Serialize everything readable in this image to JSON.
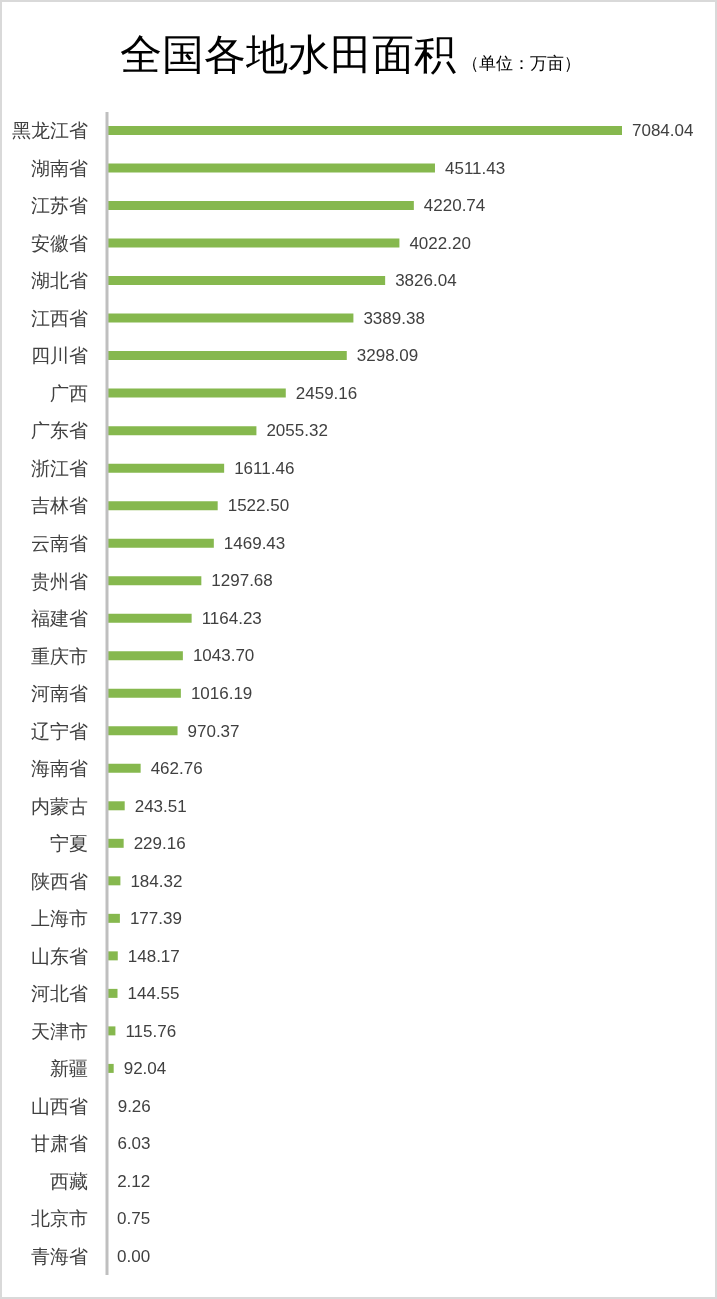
{
  "chart_data": {
    "type": "bar",
    "orientation": "horizontal",
    "title": "全国各地水田面积",
    "subtitle": "（单位：万亩）",
    "tick_labels": "y",
    "categories": [
      "黑龙江省",
      "湖南省",
      "江苏省",
      "安徽省",
      "湖北省",
      "江西省",
      "四川省",
      "广西",
      "广东省",
      "浙江省",
      "吉林省",
      "云南省",
      "贵州省",
      "福建省",
      "重庆市",
      "河南省",
      "辽宁省",
      "海南省",
      "内蒙古",
      "宁夏",
      "陕西省",
      "上海市",
      "山东省",
      "河北省",
      "天津市",
      "新疆",
      "山西省",
      "甘肃省",
      "西藏",
      "北京市",
      "青海省"
    ],
    "values": [
      7084.04,
      4511.43,
      4220.74,
      4022.2,
      3826.04,
      3389.38,
      3298.09,
      2459.16,
      2055.32,
      1611.46,
      1522.5,
      1469.43,
      1297.68,
      1164.23,
      1043.7,
      1016.19,
      970.37,
      462.76,
      243.51,
      229.16,
      184.32,
      177.39,
      148.17,
      144.55,
      115.76,
      92.04,
      9.26,
      6.03,
      2.12,
      0.75,
      0.0
    ],
    "value_labels": [
      "7084.04",
      "4511.43",
      "4220.74",
      "4022.20",
      "3826.04",
      "3389.38",
      "3298.09",
      "2459.16",
      "2055.32",
      "1611.46",
      "1522.50",
      "1469.43",
      "1297.68",
      "1164.23",
      "1043.70",
      "1016.19",
      "970.37",
      "462.76",
      "243.51",
      "229.16",
      "184.32",
      "177.39",
      "148.17",
      "144.55",
      "115.76",
      "92.04",
      "9.26",
      "6.03",
      "2.12",
      "0.75",
      "0.00"
    ],
    "color": "#86b84e"
  }
}
